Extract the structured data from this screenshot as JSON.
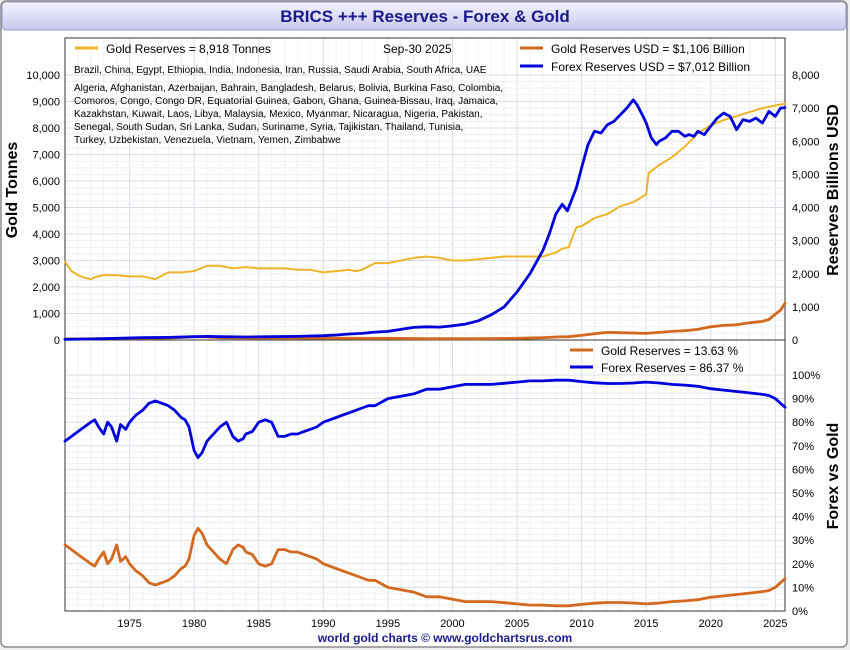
{
  "chart_data": {
    "type": "line",
    "title": "BRICS +++ Reserves - Forex & Gold",
    "footer": "world gold charts © www.goldchartsrus.com",
    "colors": {
      "gold_tonnes": "#f0b429",
      "gold_usd": "#d2691e",
      "forex_usd": "#0000dd",
      "title_text": "#1a1a8c",
      "title_bg_top": "#f4f4ff",
      "title_bg_bottom": "#c8c8ec"
    },
    "legend_top": {
      "gold_tonnes": "Gold Reserves  = 8,918 Tonnes",
      "date": "Sep-30  2025",
      "gold_usd": "Gold Reserves USD    = $1,106 Billion",
      "forex_usd": "Forex Reserves USD  = $7,012 Billion"
    },
    "country_lines": [
      "Brazil, China, Egypt, Ethiopia, India, Indonesia, Iran, Russia, Saudi Arabia, South Africa, UAE",
      "Algeria, Afghanistan, Azerbaijan, Bahrain, Bangladesh, Belarus, Bolivia, Burkina Faso, Colombia,",
      "Comoros, Congo, Congo DR, Equatorial Guinea, Gabon, Ghana, Guinea-Bissau, Iraq, Jamaica,",
      "Kazakhstan, Kuwait, Laos, Libya, Malaysia, Mexico, Myanmar, Nicaragua, Nigeria, Pakistan,",
      "Senegal, South Sudan, Sri Lanka, Sudan, Suriname, Syria, Tajikistan, Thailand, Tunisia,",
      "Turkey, Uzbekistan, Venezuela, Vietnam, Yemen, Zimbabwe"
    ],
    "legend_bottom": {
      "gold_pct": "Gold Reserves     = 13.63 %",
      "forex_pct": "Forex Reserves  = 86.37 %"
    },
    "top_panel": {
      "ylabel_left": "Gold Tonnes",
      "ylabel_right": "Reserves Billions USD",
      "ylim_left": [
        0,
        10000
      ],
      "ylim_right": [
        0,
        8000
      ],
      "yticks_left": [
        "0",
        "1,000",
        "2,000",
        "3,000",
        "4,000",
        "5,000",
        "6,000",
        "7,000",
        "8,000",
        "9,000",
        "10,000"
      ],
      "yticks_right": [
        "0",
        "1,000",
        "2,000",
        "3,000",
        "4,000",
        "5,000",
        "6,000",
        "7,000",
        "8,000"
      ]
    },
    "bottom_panel": {
      "ylabel_right": "Forex vs Gold",
      "ylim": [
        0,
        100
      ],
      "yticks_right": [
        "0%",
        "10%",
        "20%",
        "30%",
        "40%",
        "50%",
        "60%",
        "70%",
        "80%",
        "90%",
        "100%"
      ]
    },
    "xlim": [
      1970,
      2025.75
    ],
    "xticks": [
      "1975",
      "1980",
      "1985",
      "1990",
      "1995",
      "2000",
      "2005",
      "2010",
      "2015",
      "2020",
      "2025"
    ],
    "series": [
      {
        "name": "Gold Reserves",
        "unit": "tonnes",
        "axis": "left",
        "x": [
          1970,
          1970.5,
          1971,
          1971.5,
          1972,
          1972.5,
          1973,
          1974,
          1975,
          1976,
          1976.5,
          1977,
          1978,
          1979,
          1980,
          1981,
          1982,
          1983,
          1984,
          1985,
          1986,
          1987,
          1988,
          1989,
          1990,
          1991,
          1992,
          1992.5,
          1993,
          1994,
          1995,
          1996,
          1997,
          1998,
          1999,
          2000,
          2001,
          2002,
          2003,
          2004,
          2005,
          2006,
          2007,
          2008,
          2008.5,
          2009,
          2009.3,
          2009.6,
          2010,
          2011,
          2012,
          2013,
          2014,
          2015,
          2015.2,
          2016,
          2017,
          2018,
          2019,
          2020,
          2021,
          2022,
          2023,
          2024,
          2025,
          2025.75
        ],
        "values": [
          2950,
          2600,
          2450,
          2350,
          2300,
          2400,
          2450,
          2450,
          2400,
          2400,
          2350,
          2300,
          2550,
          2550,
          2600,
          2800,
          2800,
          2700,
          2750,
          2700,
          2700,
          2700,
          2650,
          2650,
          2550,
          2600,
          2650,
          2600,
          2650,
          2900,
          2900,
          3000,
          3100,
          3150,
          3100,
          3000,
          3000,
          3050,
          3100,
          3150,
          3150,
          3150,
          3150,
          3300,
          3450,
          3500,
          3900,
          4250,
          4300,
          4600,
          4750,
          5050,
          5200,
          5500,
          6300,
          6600,
          6900,
          7300,
          7800,
          8100,
          8300,
          8450,
          8600,
          8750,
          8850,
          8918
        ]
      },
      {
        "name": "Gold Reserves USD",
        "unit": "billion USD",
        "axis": "right",
        "x": [
          1970,
          1972,
          1974,
          1976,
          1978,
          1979,
          1980,
          1981,
          1982,
          1985,
          1988,
          1990,
          1993,
          1995,
          1998,
          2000,
          2002,
          2005,
          2007,
          2008,
          2009,
          2010,
          2011,
          2012,
          2013,
          2014,
          2015,
          2016,
          2017,
          2018,
          2019,
          2020,
          2021,
          2022,
          2023,
          2024,
          2024.5,
          2025,
          2025.4,
          2025.75
        ],
        "values": [
          30,
          35,
          45,
          50,
          60,
          80,
          100,
          90,
          70,
          60,
          60,
          55,
          50,
          50,
          40,
          40,
          40,
          50,
          70,
          90,
          100,
          140,
          190,
          230,
          220,
          210,
          200,
          230,
          260,
          280,
          320,
          400,
          440,
          460,
          520,
          560,
          620,
          780,
          900,
          1106
        ]
      },
      {
        "name": "Forex Reserves USD",
        "unit": "billion USD",
        "axis": "right",
        "x": [
          1970,
          1972,
          1974,
          1976,
          1978,
          1980,
          1981,
          1982,
          1984,
          1986,
          1988,
          1990,
          1991,
          1992,
          1993,
          1994,
          1995,
          1996,
          1997,
          1998,
          1999,
          2000,
          2001,
          2002,
          2003,
          2004,
          2005,
          2006,
          2007,
          2007.5,
          2008,
          2008.5,
          2008.9,
          2009.2,
          2009.6,
          2010,
          2010.5,
          2011,
          2011.5,
          2012,
          2012.5,
          2013,
          2013.5,
          2014,
          2014.3,
          2014.7,
          2015,
          2015.4,
          2015.8,
          2016,
          2016.5,
          2017,
          2017.5,
          2018,
          2018.3,
          2018.7,
          2019,
          2019.5,
          2020,
          2020.5,
          2021,
          2021.5,
          2022,
          2022.5,
          2023,
          2023.5,
          2024,
          2024.5,
          2025,
          2025.4,
          2025.75
        ],
        "values": [
          20,
          30,
          50,
          70,
          80,
          100,
          110,
          100,
          90,
          100,
          110,
          130,
          150,
          180,
          200,
          240,
          260,
          320,
          380,
          400,
          390,
          430,
          480,
          580,
          760,
          1000,
          1450,
          2000,
          2700,
          3200,
          3800,
          4100,
          3900,
          4200,
          4600,
          5200,
          5900,
          6300,
          6250,
          6500,
          6600,
          6800,
          7000,
          7250,
          7100,
          6800,
          6550,
          6100,
          5900,
          6000,
          6100,
          6300,
          6300,
          6150,
          6200,
          6150,
          6300,
          6200,
          6450,
          6700,
          6850,
          6750,
          6350,
          6650,
          6600,
          6700,
          6550,
          6900,
          6750,
          7000,
          7012
        ]
      },
      {
        "name": "Gold Reserves %",
        "unit": "percent",
        "axis": "bottom",
        "x": [
          1970,
          1970.5,
          1971,
          1971.5,
          1972,
          1972.3,
          1972.6,
          1973,
          1973.3,
          1973.6,
          1974,
          1974.3,
          1974.7,
          1975,
          1975.5,
          1976,
          1976.5,
          1977,
          1977.5,
          1978,
          1978.5,
          1979,
          1979.3,
          1979.6,
          1980,
          1980.3,
          1980.6,
          1981,
          1981.5,
          1982,
          1982.5,
          1983,
          1983.4,
          1983.8,
          1984,
          1984.5,
          1985,
          1985.5,
          1986,
          1986.5,
          1987,
          1987.5,
          1988,
          1988.5,
          1989,
          1989.5,
          1990,
          1990.5,
          1991,
          1991.5,
          1992,
          1992.5,
          1993,
          1993.5,
          1994,
          1995,
          1996,
          1997,
          1998,
          1999,
          2000,
          2001,
          2002,
          2003,
          2004,
          2005,
          2006,
          2007,
          2008,
          2009,
          2010,
          2011,
          2012,
          2013,
          2014,
          2015,
          2016,
          2017,
          2018,
          2019,
          2020,
          2021,
          2022,
          2023,
          2024,
          2024.5,
          2025,
          2025.4,
          2025.75
        ],
        "values": [
          28,
          26,
          24,
          22,
          20,
          19,
          22,
          25,
          20,
          22,
          28,
          21,
          23,
          20,
          17,
          15,
          12,
          11,
          12,
          13,
          15,
          18,
          19,
          22,
          32,
          35,
          33,
          28,
          25,
          22,
          20,
          26,
          28,
          27,
          25,
          24,
          20,
          19,
          20,
          26,
          26,
          25,
          25,
          24,
          23,
          22,
          20,
          19,
          18,
          17,
          16,
          15,
          14,
          13,
          13,
          10,
          9,
          8,
          6,
          6,
          5,
          4,
          4,
          4,
          3.5,
          3,
          2.5,
          2.5,
          2.2,
          2.2,
          2.8,
          3.3,
          3.6,
          3.6,
          3.4,
          3.0,
          3.4,
          4.0,
          4.3,
          4.8,
          5.8,
          6.4,
          7.0,
          7.6,
          8.2,
          8.7,
          10.0,
          12.0,
          13.63
        ]
      },
      {
        "name": "Forex Reserves %",
        "unit": "percent",
        "axis": "bottom",
        "x": [
          1970,
          1970.5,
          1971,
          1971.5,
          1972,
          1972.3,
          1972.6,
          1973,
          1973.3,
          1973.6,
          1974,
          1974.3,
          1974.7,
          1975,
          1975.5,
          1976,
          1976.5,
          1977,
          1977.5,
          1978,
          1978.5,
          1979,
          1979.3,
          1979.6,
          1980,
          1980.3,
          1980.6,
          1981,
          1981.5,
          1982,
          1982.5,
          1983,
          1983.4,
          1983.8,
          1984,
          1984.5,
          1985,
          1985.5,
          1986,
          1986.5,
          1987,
          1987.5,
          1988,
          1988.5,
          1989,
          1989.5,
          1990,
          1990.5,
          1991,
          1991.5,
          1992,
          1992.5,
          1993,
          1993.5,
          1994,
          1995,
          1996,
          1997,
          1998,
          1999,
          2000,
          2001,
          2002,
          2003,
          2004,
          2005,
          2006,
          2007,
          2008,
          2009,
          2010,
          2011,
          2012,
          2013,
          2014,
          2015,
          2016,
          2017,
          2018,
          2019,
          2020,
          2021,
          2022,
          2023,
          2024,
          2024.5,
          2025,
          2025.4,
          2025.75
        ],
        "values": [
          72,
          74,
          76,
          78,
          80,
          81,
          78,
          75,
          80,
          78,
          72,
          79,
          77,
          80,
          83,
          85,
          88,
          89,
          88,
          87,
          85,
          82,
          81,
          78,
          68,
          65,
          67,
          72,
          75,
          78,
          80,
          74,
          72,
          73,
          75,
          76,
          80,
          81,
          80,
          74,
          74,
          75,
          75,
          76,
          77,
          78,
          80,
          81,
          82,
          83,
          84,
          85,
          86,
          87,
          87,
          90,
          91,
          92,
          94,
          94,
          95,
          96,
          96,
          96,
          96.5,
          97,
          97.5,
          97.5,
          97.8,
          97.8,
          97.2,
          96.7,
          96.4,
          96.4,
          96.6,
          97.0,
          96.6,
          96.0,
          95.7,
          95.2,
          94.2,
          93.6,
          93.0,
          92.4,
          91.8,
          91.3,
          90.0,
          88.0,
          86.37
        ]
      }
    ]
  }
}
